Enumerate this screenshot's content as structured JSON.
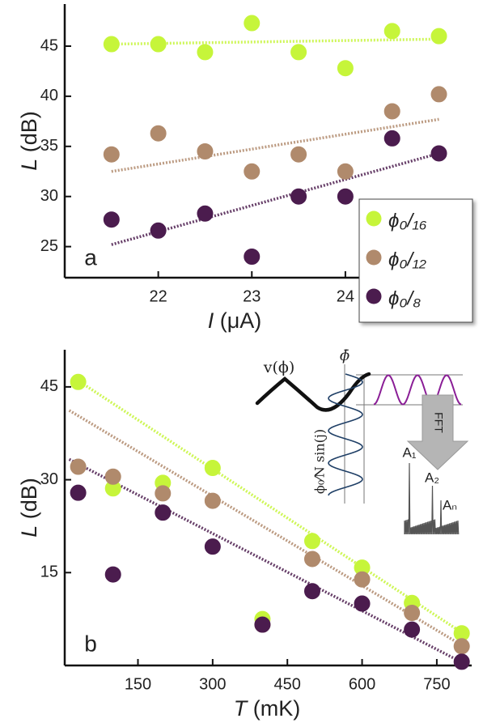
{
  "chart_data": [
    {
      "type": "scatter",
      "panel_label": "a",
      "x_label": {
        "symbol": "I",
        "unit": "(μA)"
      },
      "y_label": {
        "symbol": "L",
        "unit": "(dB)"
      },
      "x": [
        21.5,
        22,
        22.5,
        23,
        23.5,
        24,
        24.5,
        25
      ],
      "xlim": [
        21.0,
        25.35
      ],
      "xticks": [
        22,
        23,
        24
      ],
      "ylim": [
        21.9,
        49.2
      ],
      "yticks": [
        25,
        30,
        35,
        40,
        45
      ],
      "legend": "lower right",
      "series": [
        {
          "name": "ϕ₀/₁₆",
          "color": "#c6f53a",
          "values": [
            45.2,
            45.2,
            44.4,
            47.3,
            44.4,
            42.8,
            46.5,
            46.0
          ],
          "fit_x": [
            21.5,
            25
          ],
          "fit_values": [
            45.2,
            45.7
          ]
        },
        {
          "name": "ϕ₀/₁₂",
          "color": "#b08a6c",
          "values": [
            34.2,
            36.3,
            34.5,
            32.5,
            34.2,
            32.5,
            38.5,
            40.2
          ],
          "fit_x": [
            21.5,
            25
          ],
          "fit_values": [
            32.5,
            37.7
          ]
        },
        {
          "name": "ϕ₀/₈",
          "color": "#4b1c4e",
          "values": [
            27.7,
            26.6,
            28.3,
            24.0,
            30.0,
            30.0,
            35.8,
            34.3
          ],
          "fit_x": [
            21.5,
            25
          ],
          "fit_values": [
            25.2,
            34.3
          ]
        }
      ]
    },
    {
      "type": "scatter",
      "panel_label": "b",
      "x_label": {
        "symbol": "T",
        "unit": "(mK)"
      },
      "y_label": {
        "symbol": "L",
        "unit": "(dB)"
      },
      "x": [
        30,
        100,
        200,
        300,
        400,
        500,
        600,
        700,
        800
      ],
      "xlim": [
        3,
        820
      ],
      "xticks": [
        150,
        300,
        450,
        600,
        750
      ],
      "ylim": [
        0,
        51
      ],
      "yticks": [
        15,
        30,
        45
      ],
      "series": [
        {
          "color": "#c6f53a",
          "values": [
            45.8,
            28.6,
            29.5,
            31.9,
            7.5,
            20.1,
            15.8,
            10.1,
            5.2
          ],
          "fit_x": [
            30,
            810
          ],
          "fit_values": [
            46,
            4.8
          ]
        },
        {
          "color": "#b08a6c",
          "values": [
            32.1,
            30.5,
            27.8,
            26.6,
            6.6,
            17.2,
            13.9,
            8.5,
            3.1
          ],
          "fit_x": [
            12,
            810
          ],
          "fit_values": [
            41.2,
            2.8
          ]
        },
        {
          "color": "#4b1c4e",
          "values": [
            27.9,
            14.7,
            24.7,
            19.2,
            6.6,
            12.0,
            10.0,
            5.8,
            0.6
          ],
          "fit_x": [
            12,
            810
          ],
          "fit_values": [
            33.3,
            0.1
          ]
        }
      ],
      "inset": {
        "v_label": "v(ϕ)",
        "phi_bar": "ϕ̄",
        "sin_label": "ϕ₀⁄N sin(j)",
        "fft": "FFT",
        "peaks": [
          "A₁",
          "A₂",
          "Aₙ"
        ]
      }
    }
  ]
}
